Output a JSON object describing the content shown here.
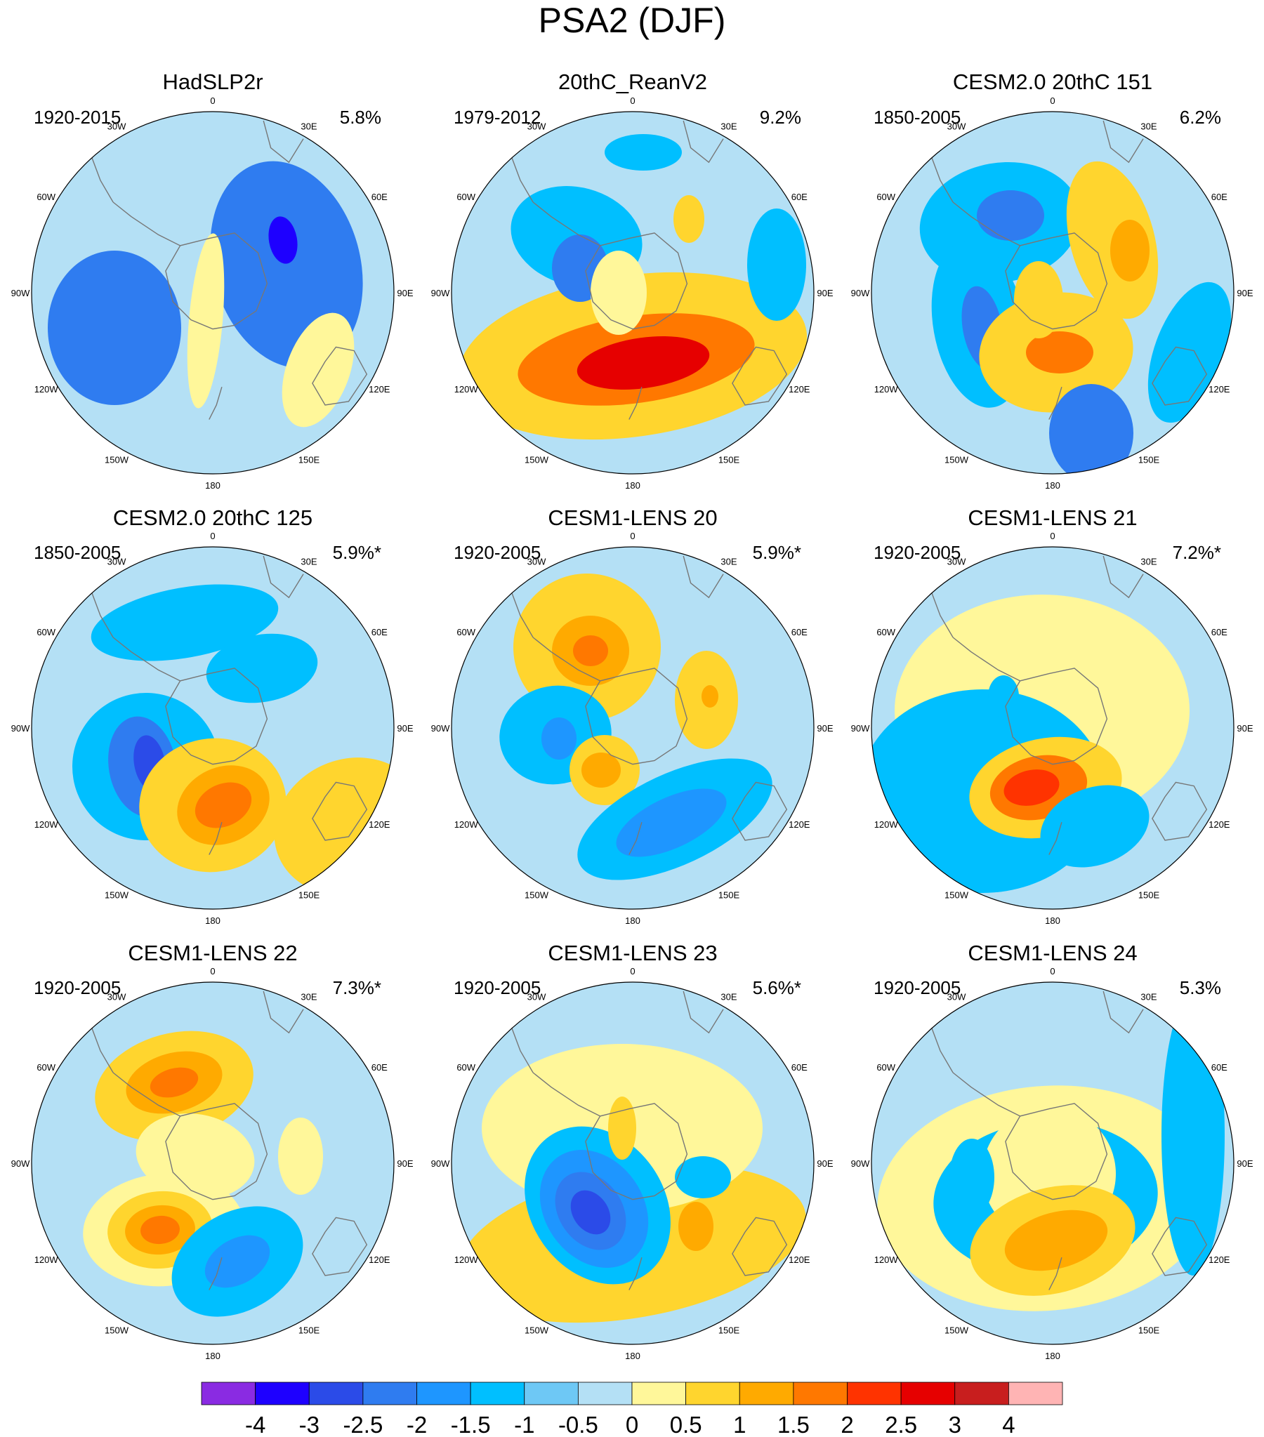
{
  "figure": {
    "title": "PSA2 (DJF)"
  },
  "panels": [
    {
      "title": "HadSLP2r",
      "years": "1920-2015",
      "variance": "5.8%"
    },
    {
      "title": "20thC_ReanV2",
      "years": "1979-2012",
      "variance": "9.2%"
    },
    {
      "title": "CESM2.0 20thC 151",
      "years": "1850-2005",
      "variance": "6.2%"
    },
    {
      "title": "CESM2.0 20thC 125",
      "years": "1850-2005",
      "variance": "5.9%*"
    },
    {
      "title": "CESM1-LENS 20",
      "years": "1920-2005",
      "variance": "5.9%*"
    },
    {
      "title": "CESM1-LENS 21",
      "years": "1920-2005",
      "variance": "7.2%*"
    },
    {
      "title": "CESM1-LENS 22",
      "years": "1920-2005",
      "variance": "7.3%*"
    },
    {
      "title": "CESM1-LENS 23",
      "years": "1920-2005",
      "variance": "5.6%*"
    },
    {
      "title": "CESM1-LENS 24",
      "years": "1920-2005",
      "variance": "5.3%"
    }
  ],
  "longitude_labels": [
    "0",
    "30E",
    "60E",
    "90E",
    "120E",
    "150E",
    "180",
    "150W",
    "120W",
    "90W",
    "60W",
    "30W"
  ],
  "colorbar": {
    "labels": [
      "-4",
      "-3",
      "-2.5",
      "-2",
      "-1.5",
      "-1",
      "-0.5",
      "0",
      "0.5",
      "1",
      "1.5",
      "2",
      "2.5",
      "3",
      "4"
    ],
    "colors": [
      "#8A2BE2",
      "#1E00FF",
      "#2B4BE8",
      "#2F7CF0",
      "#1E96FF",
      "#00BFFF",
      "#6EC8F5",
      "#B4E0F5",
      "#FFF79A",
      "#FFD52E",
      "#FFAA00",
      "#FF7800",
      "#FF3300",
      "#E60000",
      "#C81E1E",
      "#FFB4B4"
    ]
  },
  "colors": {
    "ocean_neutral": "#B4E0F5",
    "coastline": "#777777"
  }
}
